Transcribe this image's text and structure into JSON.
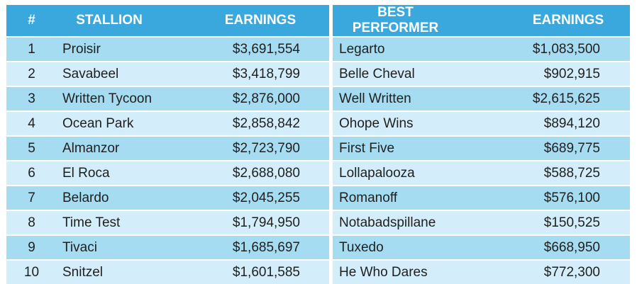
{
  "headers": {
    "rank": "#",
    "stallion": "STALLION",
    "earnings": "EARNINGS",
    "best_performer": "BEST PERFORMER",
    "performer_earnings": "EARNINGS"
  },
  "colors": {
    "header_bg": "#3aa8dc",
    "header_text": "#ffffff",
    "row_dark": "#a6dcf1",
    "row_light": "#d3eefa"
  },
  "rows": [
    {
      "rank": "1",
      "stallion": "Proisir",
      "earnings": "$3,691,554",
      "best_performer": "Legarto",
      "performer_earnings": "$1,083,500"
    },
    {
      "rank": "2",
      "stallion": "Savabeel",
      "earnings": "$3,418,799",
      "best_performer": "Belle Cheval",
      "performer_earnings": "$902,915"
    },
    {
      "rank": "3",
      "stallion": "Written Tycoon",
      "earnings": "$2,876,000",
      "best_performer": "Well Written",
      "performer_earnings": "$2,615,625"
    },
    {
      "rank": "4",
      "stallion": "Ocean Park",
      "earnings": "$2,858,842",
      "best_performer": "Ohope Wins",
      "performer_earnings": "$894,120"
    },
    {
      "rank": "5",
      "stallion": "Almanzor",
      "earnings": "$2,723,790",
      "best_performer": "First Five",
      "performer_earnings": "$689,775"
    },
    {
      "rank": "6",
      "stallion": "El Roca",
      "earnings": "$2,688,080",
      "best_performer": "Lollapalooza",
      "performer_earnings": "$588,725"
    },
    {
      "rank": "7",
      "stallion": "Belardo",
      "earnings": "$2,045,255",
      "best_performer": "Romanoff",
      "performer_earnings": "$576,100"
    },
    {
      "rank": "8",
      "stallion": "Time Test",
      "earnings": "$1,794,950",
      "best_performer": "Notabadspillane",
      "performer_earnings": "$150,525"
    },
    {
      "rank": "9",
      "stallion": "Tivaci",
      "earnings": "$1,685,697",
      "best_performer": "Tuxedo",
      "performer_earnings": "$668,950"
    },
    {
      "rank": "10",
      "stallion": "Snitzel",
      "earnings": "$1,601,585",
      "best_performer": "He Who Dares",
      "performer_earnings": "$772,300"
    }
  ]
}
